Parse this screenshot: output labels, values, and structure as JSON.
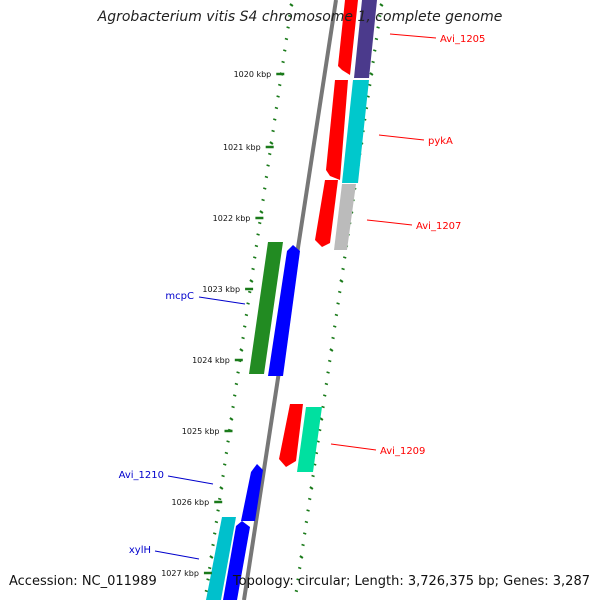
{
  "title": "Agrobacterium vitis S4 chromosome 1, complete genome",
  "footer": {
    "accession": "Accession: NC_011989",
    "summary": "Topology: circular; Length: 3,726,375 bp; Genes: 3,287"
  },
  "colors": {
    "backbone": "#808080",
    "tick": "#1a7a1a",
    "label_forward": "#0000cc",
    "label_reverse": "#ff0000"
  },
  "ruler": [
    {
      "label": "1020 kbp"
    },
    {
      "label": "1021 kbp"
    },
    {
      "label": "1022 kbp"
    },
    {
      "label": "1023 kbp"
    },
    {
      "label": "1024 kbp"
    },
    {
      "label": "1025 kbp"
    },
    {
      "label": "1026 kbp"
    },
    {
      "label": "1027 kbp"
    }
  ],
  "gene_labels": [
    {
      "text": "Avi_1205",
      "color": "#ff0000"
    },
    {
      "text": "pykA",
      "color": "#ff0000"
    },
    {
      "text": "Avi_1207",
      "color": "#ff0000"
    },
    {
      "text": "mcpC",
      "color": "#0000cc"
    },
    {
      "text": "Avi_1209",
      "color": "#ff0000"
    },
    {
      "text": "Avi_1210",
      "color": "#0000cc"
    },
    {
      "text": "xylH",
      "color": "#0000cc"
    }
  ]
}
